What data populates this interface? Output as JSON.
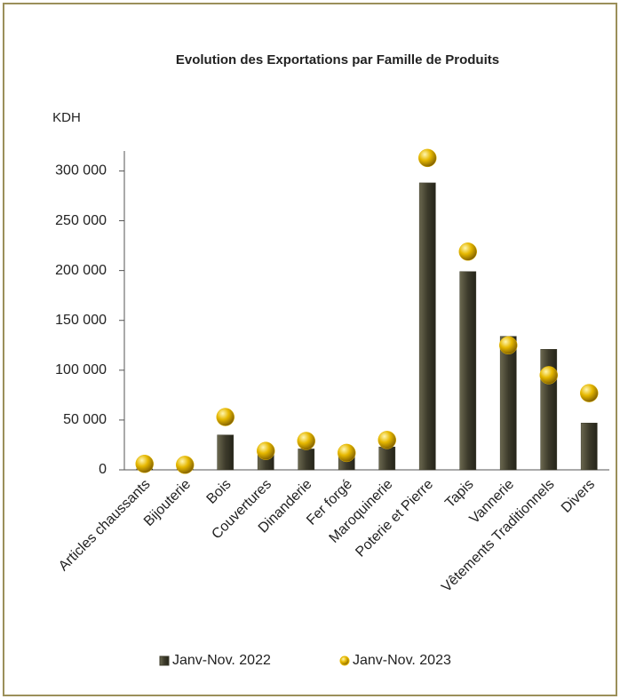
{
  "chart_data": {
    "type": "bar",
    "title": "Evolution des Exportations  par Famille de Produits",
    "y_axis_label": "KDH",
    "categories": [
      "Articles chaussants",
      "Bijouterie",
      "Bois",
      "Couvertures",
      "Dinanderie",
      "Fer forgé",
      "Maroquinerie",
      "Poterie et Pierre",
      "Tapis",
      "Vannerie",
      "Vêtements Traditionnels",
      "Divers"
    ],
    "series": [
      {
        "name": "Janv-Nov. 2022",
        "type": "bar",
        "color": "#3d3b2b",
        "values": [
          1000,
          1000,
          35000,
          15000,
          21000,
          14000,
          23000,
          288000,
          199000,
          134000,
          121000,
          47000
        ]
      },
      {
        "name": "Janv-Nov. 2023",
        "type": "scatter",
        "color": "#e6b800",
        "values": [
          6000,
          5000,
          53000,
          19000,
          29000,
          17000,
          30000,
          313000,
          219000,
          125000,
          95000,
          77000
        ]
      }
    ],
    "ylim": [
      0,
      320000
    ],
    "yticks": [
      0,
      {
        "value": 50000,
        "label": "50 000"
      },
      {
        "value": 100000,
        "label": "100 000"
      },
      {
        "value": 150000,
        "label": "150 000"
      },
      {
        "value": 200000,
        "label": "200 000"
      },
      {
        "value": 250000,
        "label": "250 000"
      },
      {
        "value": 300000,
        "label": "300 000"
      }
    ],
    "grid": false,
    "legend": "bottom"
  }
}
